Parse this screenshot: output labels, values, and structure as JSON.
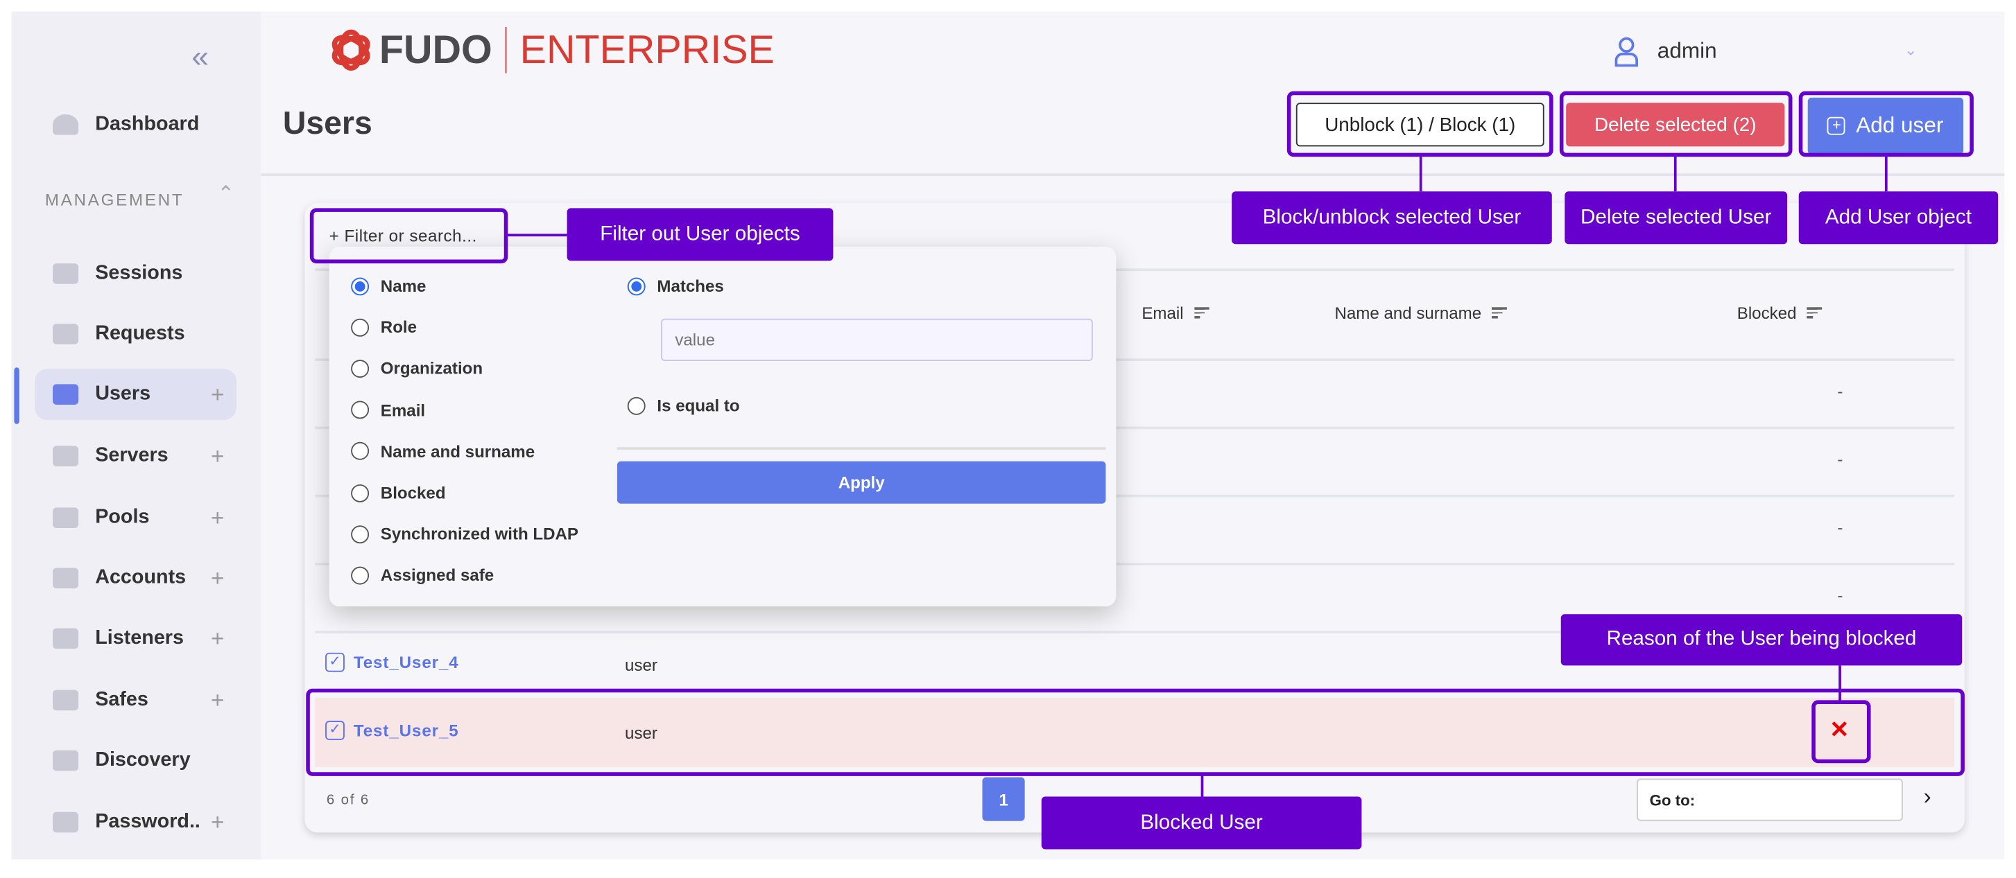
{
  "brand": {
    "logo_text": "FUDO",
    "product": "ENTERPRISE",
    "colors": {
      "logo_red": "#d93a32",
      "logo_gray": "#4a4a4f"
    }
  },
  "sidebar": {
    "collapse_icon": "double-chevron-left-icon",
    "dashboard": "Dashboard",
    "section_label": "MANAGEMENT",
    "items": [
      {
        "label": "Sessions",
        "icon": "sessions-icon",
        "plus": ""
      },
      {
        "label": "Requests",
        "icon": "requests-icon",
        "plus": ""
      },
      {
        "label": "Users",
        "icon": "users-icon",
        "plus": "+",
        "active": true
      },
      {
        "label": "Servers",
        "icon": "servers-icon",
        "plus": "+"
      },
      {
        "label": "Pools",
        "icon": "pools-icon",
        "plus": "+"
      },
      {
        "label": "Accounts",
        "icon": "accounts-icon",
        "plus": "+"
      },
      {
        "label": "Listeners",
        "icon": "listeners-icon",
        "plus": "+"
      },
      {
        "label": "Safes",
        "icon": "safes-icon",
        "plus": "+"
      },
      {
        "label": "Discovery",
        "icon": "discovery-icon",
        "plus": ""
      },
      {
        "label": "Password..",
        "icon": "password-icon",
        "plus": "+"
      }
    ]
  },
  "header": {
    "user": "admin"
  },
  "page": {
    "title": "Users",
    "buttons": {
      "block": "Unblock (1) / Block (1)",
      "delete": "Delete selected (2)",
      "add": "Add user"
    },
    "colors": {
      "delete": "#e15567",
      "add": "#5e79e8",
      "annotation": "#6600cc",
      "blocked_row": "#f8e5e6"
    }
  },
  "filter": {
    "label": "+ Filter or search...",
    "fields": [
      "Name",
      "Role",
      "Organization",
      "Email",
      "Name and surname",
      "Blocked",
      "Synchronized with LDAP",
      "Assigned safe"
    ],
    "selected_field": "Name",
    "match_options": [
      "Matches",
      "Is equal to"
    ],
    "selected_match": "Matches",
    "value_placeholder": "value",
    "apply": "Apply"
  },
  "table": {
    "columns": [
      "Email",
      "Name and surname",
      "Blocked"
    ],
    "hidden_rows_blocked": [
      "-",
      "-",
      "-",
      "-"
    ],
    "rows": [
      {
        "name": "Test_User_4",
        "role": "user",
        "checked": true,
        "blocked": ""
      },
      {
        "name": "Test_User_5",
        "role": "user",
        "checked": true,
        "blocked": "✕"
      }
    ],
    "count": "6 of 6",
    "page": "1",
    "goto_label": "Go to:"
  },
  "annotations": {
    "filter": "Filter out User objects",
    "block": "Block/unblock selected User",
    "delete": "Delete selected User",
    "add": "Add User object",
    "reason": "Reason of the User being blocked",
    "blocked_user": "Blocked User"
  }
}
